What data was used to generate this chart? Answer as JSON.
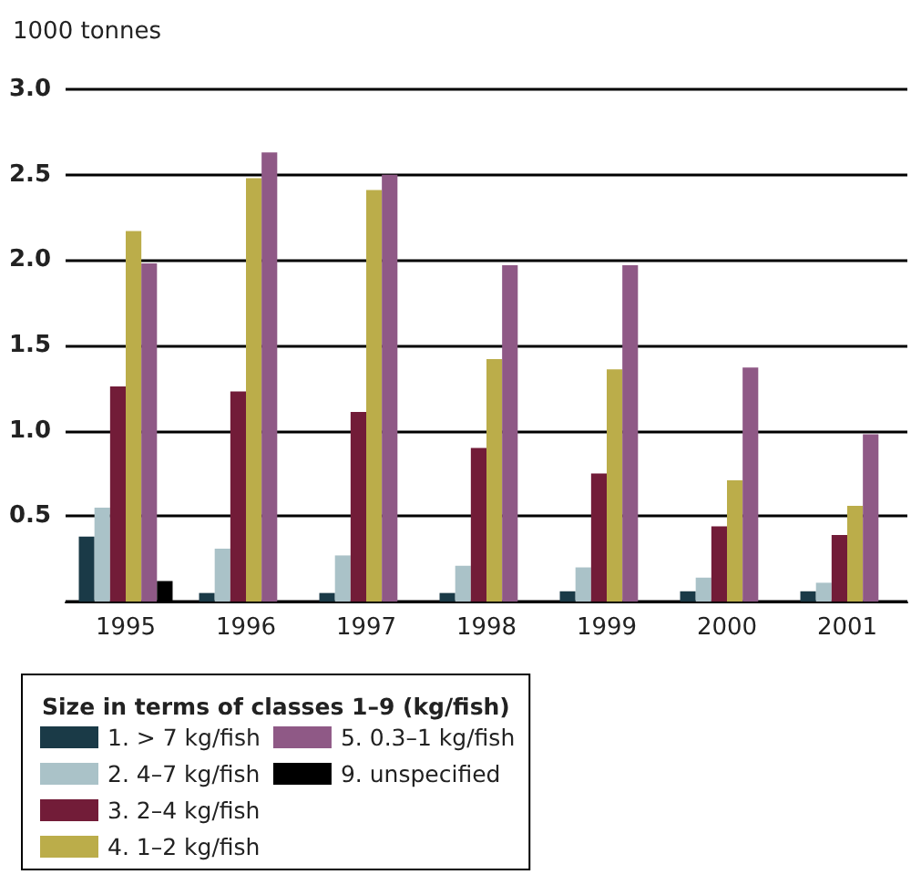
{
  "chart_data": {
    "type": "bar",
    "ylabel": "1000 tonnes",
    "legend_title": "Size in terms of classes 1–9 (kg/fish)",
    "categories": [
      "1995",
      "1996",
      "1997",
      "1998",
      "1999",
      "2000",
      "2001"
    ],
    "series": [
      {
        "name": "1. > 7 kg/fish",
        "color": "#1a3a47",
        "values": [
          0.38,
          0.05,
          0.05,
          0.05,
          0.06,
          0.06,
          0.06
        ]
      },
      {
        "name": "2. 4–7 kg/fish",
        "color": "#aac2c8",
        "values": [
          0.55,
          0.31,
          0.27,
          0.21,
          0.2,
          0.14,
          0.11
        ]
      },
      {
        "name": "3. 2–4 kg/fish",
        "color": "#721c38",
        "values": [
          1.26,
          1.23,
          1.11,
          0.9,
          0.75,
          0.44,
          0.39
        ]
      },
      {
        "name": "4. 1–2 kg/fish",
        "color": "#bbad4a",
        "values": [
          2.17,
          2.48,
          2.41,
          1.42,
          1.36,
          0.71,
          0.56
        ]
      },
      {
        "name": "5. 0.3–1 kg/fish",
        "color": "#8f5986",
        "values": [
          1.98,
          2.63,
          2.5,
          1.97,
          1.97,
          1.37,
          0.98
        ]
      },
      {
        "name": "9. unspecified",
        "color": "#000000",
        "values": [
          0.12,
          null,
          null,
          null,
          null,
          null,
          null
        ]
      }
    ],
    "ylim": [
      0,
      3
    ],
    "yticks": [
      0.5,
      {
        "value": 1,
        "label": "1.0"
      },
      1.5,
      {
        "value": 2,
        "label": "2.0"
      },
      2.5,
      {
        "value": 3,
        "label": "3.0"
      }
    ],
    "grid": "y",
    "legend": "bottom"
  }
}
